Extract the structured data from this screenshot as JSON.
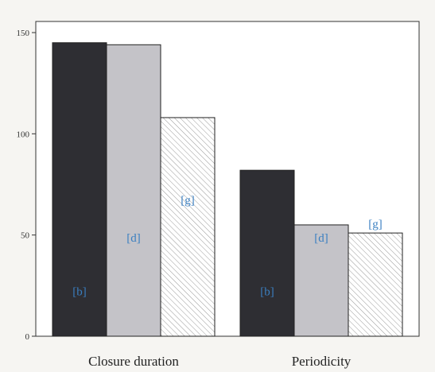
{
  "chart_data": {
    "type": "bar",
    "categories": [
      "Closure duration",
      "Periodicity"
    ],
    "series": [
      {
        "label": "[b]",
        "values": [
          145,
          82
        ],
        "color": "#2e2e33",
        "pattern": "solid"
      },
      {
        "label": "[d]",
        "values": [
          144,
          55
        ],
        "color": "#c4c3c8",
        "pattern": "solid"
      },
      {
        "label": "[g]",
        "values": [
          108,
          51
        ],
        "color": "#ffffff",
        "pattern": "hatch"
      }
    ],
    "title": "",
    "xlabel": "",
    "ylabel": "",
    "ylim": [
      0,
      150
    ],
    "yticks": [
      0,
      50,
      100,
      150
    ],
    "grid": false,
    "legend": "none",
    "label_color": "#3a7fc1"
  }
}
